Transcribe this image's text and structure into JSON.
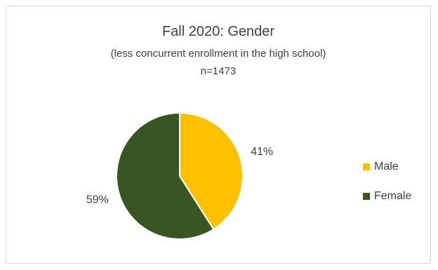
{
  "chart_data": {
    "type": "pie",
    "title": "Fall 2020: Gender",
    "subtitle": "(less concurrent enrollment in the high school)",
    "note": "n=1473",
    "categories": [
      "Male",
      "Female"
    ],
    "values": [
      41,
      59
    ],
    "data_labels": [
      "41%",
      "59%"
    ],
    "colors": [
      "#FFC000",
      "#375623"
    ],
    "legend_position": "right"
  }
}
